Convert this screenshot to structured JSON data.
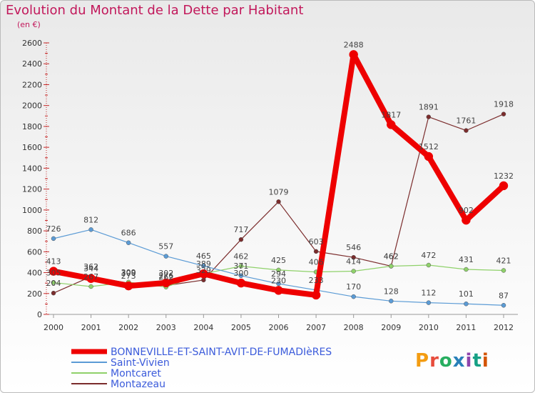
{
  "header": {
    "title": "Evolution du Montant de la Dette par Habitant",
    "subtitle": "(en €)"
  },
  "brand": {
    "text": "Proxiti",
    "colors": [
      "#f39c12",
      "#e74c3c",
      "#27ae60",
      "#2980b9",
      "#8e44ad",
      "#16a085",
      "#d35400"
    ]
  },
  "chart_data": {
    "type": "line",
    "x": [
      "2000",
      "2001",
      "2002",
      "2003",
      "2004",
      "2005",
      "2006",
      "2007",
      "2008",
      "2009",
      "2010",
      "2011",
      "2012"
    ],
    "ylim": [
      0,
      2600
    ],
    "yticks": [
      0,
      200,
      400,
      600,
      800,
      1000,
      1200,
      1400,
      1600,
      1800,
      2000,
      2200,
      2400,
      2600
    ],
    "grid": false,
    "legend_position": "bottom",
    "series": [
      {
        "name": "BONNEVILLE-ET-SAINT-AVIT-DE-FUMADIèRES",
        "color": "#ee0000",
        "width": 8,
        "values": [
          413,
          344,
          273,
          302,
          389,
          300,
          230,
          185,
          2488,
          1817,
          1512,
          902,
          1232
        ],
        "labels": [
          "413",
          "344",
          "273",
          "302",
          "",
          "300",
          "230",
          "",
          "2488",
          "1817",
          "1512",
          "902",
          "1232"
        ]
      },
      {
        "name": "Saint-Vivien",
        "color": "#5b9bd5",
        "width": 1.2,
        "values": [
          726,
          812,
          686,
          557,
          465,
          371,
          294,
          233,
          170,
          128,
          112,
          101,
          87
        ],
        "labels": [
          "726",
          "812",
          "686",
          "557",
          "465",
          "371",
          "294",
          "233",
          "170",
          "128",
          "112",
          "101",
          "87"
        ]
      },
      {
        "name": "Montcaret",
        "color": "#8fd16a",
        "width": 1.2,
        "values": [
          305,
          267,
          309,
          262,
          389,
          462,
          425,
          406,
          414,
          462,
          472,
          431,
          421
        ],
        "labels": [
          "305",
          "267",
          "309",
          "262",
          "389",
          "462",
          "425",
          "406",
          "414",
          "462",
          "472",
          "431",
          "421"
        ]
      },
      {
        "name": "Montazeau",
        "color": "#7b2c2c",
        "width": 1.2,
        "values": [
          204,
          362,
          300,
          276,
          329,
          717,
          1079,
          603,
          546,
          462,
          1891,
          1761,
          1918
        ],
        "labels": [
          "204",
          "362",
          "300",
          "276",
          "329",
          "717",
          "1079",
          "603",
          "546",
          "462",
          "1891",
          "1761",
          "1918"
        ]
      }
    ]
  }
}
